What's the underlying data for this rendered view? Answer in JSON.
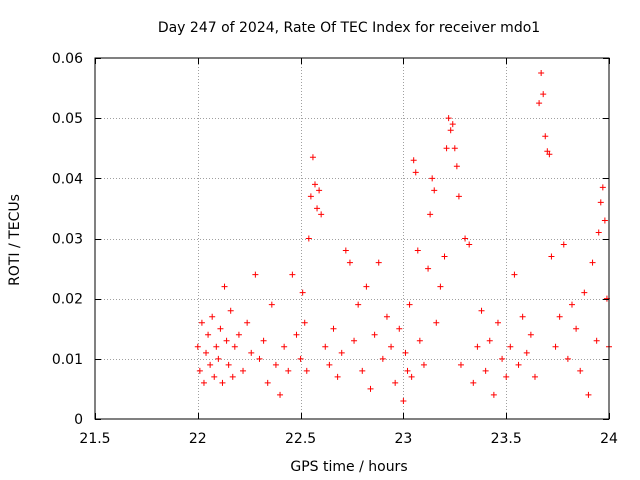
{
  "chart_data": {
    "type": "scatter",
    "title": "Day 247 of 2024, Rate Of TEC Index for receiver mdo1",
    "xlabel": "GPS time / hours",
    "ylabel": "ROTI / TECUs",
    "xlim": [
      21.5,
      24
    ],
    "ylim": [
      0,
      0.06
    ],
    "x_ticks": [
      21.5,
      22,
      22.5,
      23,
      23.5,
      24
    ],
    "x_tick_labels": [
      "21.5",
      "22",
      "22.5",
      "23",
      "23.5",
      "24"
    ],
    "y_ticks": [
      0,
      0.01,
      0.02,
      0.03,
      0.04,
      0.05,
      0.06
    ],
    "y_tick_labels": [
      "0",
      "0.01",
      "0.02",
      "0.03",
      "0.04",
      "0.05",
      "0.06"
    ],
    "grid": true,
    "marker": "+",
    "marker_color": "#ff0000",
    "series": [
      {
        "name": "ROTI",
        "points": [
          [
            22.0,
            0.012
          ],
          [
            22.01,
            0.008
          ],
          [
            22.02,
            0.016
          ],
          [
            22.03,
            0.006
          ],
          [
            22.04,
            0.011
          ],
          [
            22.05,
            0.014
          ],
          [
            22.06,
            0.009
          ],
          [
            22.07,
            0.017
          ],
          [
            22.08,
            0.007
          ],
          [
            22.09,
            0.012
          ],
          [
            22.1,
            0.01
          ],
          [
            22.11,
            0.015
          ],
          [
            22.12,
            0.006
          ],
          [
            22.13,
            0.022
          ],
          [
            22.14,
            0.013
          ],
          [
            22.15,
            0.009
          ],
          [
            22.16,
            0.018
          ],
          [
            22.17,
            0.007
          ],
          [
            22.18,
            0.012
          ],
          [
            22.2,
            0.014
          ],
          [
            22.22,
            0.008
          ],
          [
            22.24,
            0.016
          ],
          [
            22.26,
            0.011
          ],
          [
            22.28,
            0.024
          ],
          [
            22.3,
            0.01
          ],
          [
            22.32,
            0.013
          ],
          [
            22.34,
            0.006
          ],
          [
            22.36,
            0.019
          ],
          [
            22.38,
            0.009
          ],
          [
            22.4,
            0.004
          ],
          [
            22.42,
            0.012
          ],
          [
            22.44,
            0.008
          ],
          [
            22.46,
            0.024
          ],
          [
            22.48,
            0.014
          ],
          [
            22.5,
            0.01
          ],
          [
            22.51,
            0.021
          ],
          [
            22.52,
            0.016
          ],
          [
            22.53,
            0.008
          ],
          [
            22.54,
            0.03
          ],
          [
            22.55,
            0.037
          ],
          [
            22.56,
            0.0435
          ],
          [
            22.57,
            0.039
          ],
          [
            22.58,
            0.035
          ],
          [
            22.59,
            0.038
          ],
          [
            22.6,
            0.034
          ],
          [
            22.62,
            0.012
          ],
          [
            22.64,
            0.009
          ],
          [
            22.66,
            0.015
          ],
          [
            22.68,
            0.007
          ],
          [
            22.7,
            0.011
          ],
          [
            22.72,
            0.028
          ],
          [
            22.74,
            0.026
          ],
          [
            22.76,
            0.013
          ],
          [
            22.78,
            0.019
          ],
          [
            22.8,
            0.008
          ],
          [
            22.82,
            0.022
          ],
          [
            22.84,
            0.005
          ],
          [
            22.86,
            0.014
          ],
          [
            22.88,
            0.026
          ],
          [
            22.9,
            0.01
          ],
          [
            22.92,
            0.017
          ],
          [
            22.94,
            0.012
          ],
          [
            22.96,
            0.006
          ],
          [
            22.98,
            0.015
          ],
          [
            23.0,
            0.003
          ],
          [
            23.01,
            0.011
          ],
          [
            23.02,
            0.008
          ],
          [
            23.03,
            0.019
          ],
          [
            23.04,
            0.007
          ],
          [
            23.05,
            0.043
          ],
          [
            23.06,
            0.041
          ],
          [
            23.07,
            0.028
          ],
          [
            23.08,
            0.013
          ],
          [
            23.1,
            0.009
          ],
          [
            23.12,
            0.025
          ],
          [
            23.13,
            0.034
          ],
          [
            23.14,
            0.04
          ],
          [
            23.15,
            0.038
          ],
          [
            23.16,
            0.016
          ],
          [
            23.18,
            0.022
          ],
          [
            23.2,
            0.027
          ],
          [
            23.21,
            0.045
          ],
          [
            23.22,
            0.05
          ],
          [
            23.23,
            0.048
          ],
          [
            23.24,
            0.049
          ],
          [
            23.25,
            0.045
          ],
          [
            23.26,
            0.042
          ],
          [
            23.27,
            0.037
          ],
          [
            23.28,
            0.009
          ],
          [
            23.3,
            0.03
          ],
          [
            23.32,
            0.029
          ],
          [
            23.34,
            0.006
          ],
          [
            23.36,
            0.012
          ],
          [
            23.38,
            0.018
          ],
          [
            23.4,
            0.008
          ],
          [
            23.42,
            0.013
          ],
          [
            23.44,
            0.004
          ],
          [
            23.46,
            0.016
          ],
          [
            23.48,
            0.01
          ],
          [
            23.5,
            0.007
          ],
          [
            23.52,
            0.012
          ],
          [
            23.54,
            0.024
          ],
          [
            23.56,
            0.009
          ],
          [
            23.58,
            0.017
          ],
          [
            23.6,
            0.011
          ],
          [
            23.62,
            0.014
          ],
          [
            23.64,
            0.007
          ],
          [
            23.66,
            0.0525
          ],
          [
            23.67,
            0.0575
          ],
          [
            23.68,
            0.054
          ],
          [
            23.69,
            0.047
          ],
          [
            23.7,
            0.0445
          ],
          [
            23.71,
            0.044
          ],
          [
            23.72,
            0.027
          ],
          [
            23.74,
            0.012
          ],
          [
            23.76,
            0.017
          ],
          [
            23.78,
            0.029
          ],
          [
            23.8,
            0.01
          ],
          [
            23.82,
            0.019
          ],
          [
            23.84,
            0.015
          ],
          [
            23.86,
            0.008
          ],
          [
            23.88,
            0.021
          ],
          [
            23.9,
            0.004
          ],
          [
            23.92,
            0.026
          ],
          [
            23.94,
            0.013
          ],
          [
            23.95,
            0.031
          ],
          [
            23.96,
            0.036
          ],
          [
            23.97,
            0.0385
          ],
          [
            23.98,
            0.033
          ],
          [
            23.99,
            0.02
          ],
          [
            24.0,
            0.012
          ]
        ]
      }
    ]
  }
}
